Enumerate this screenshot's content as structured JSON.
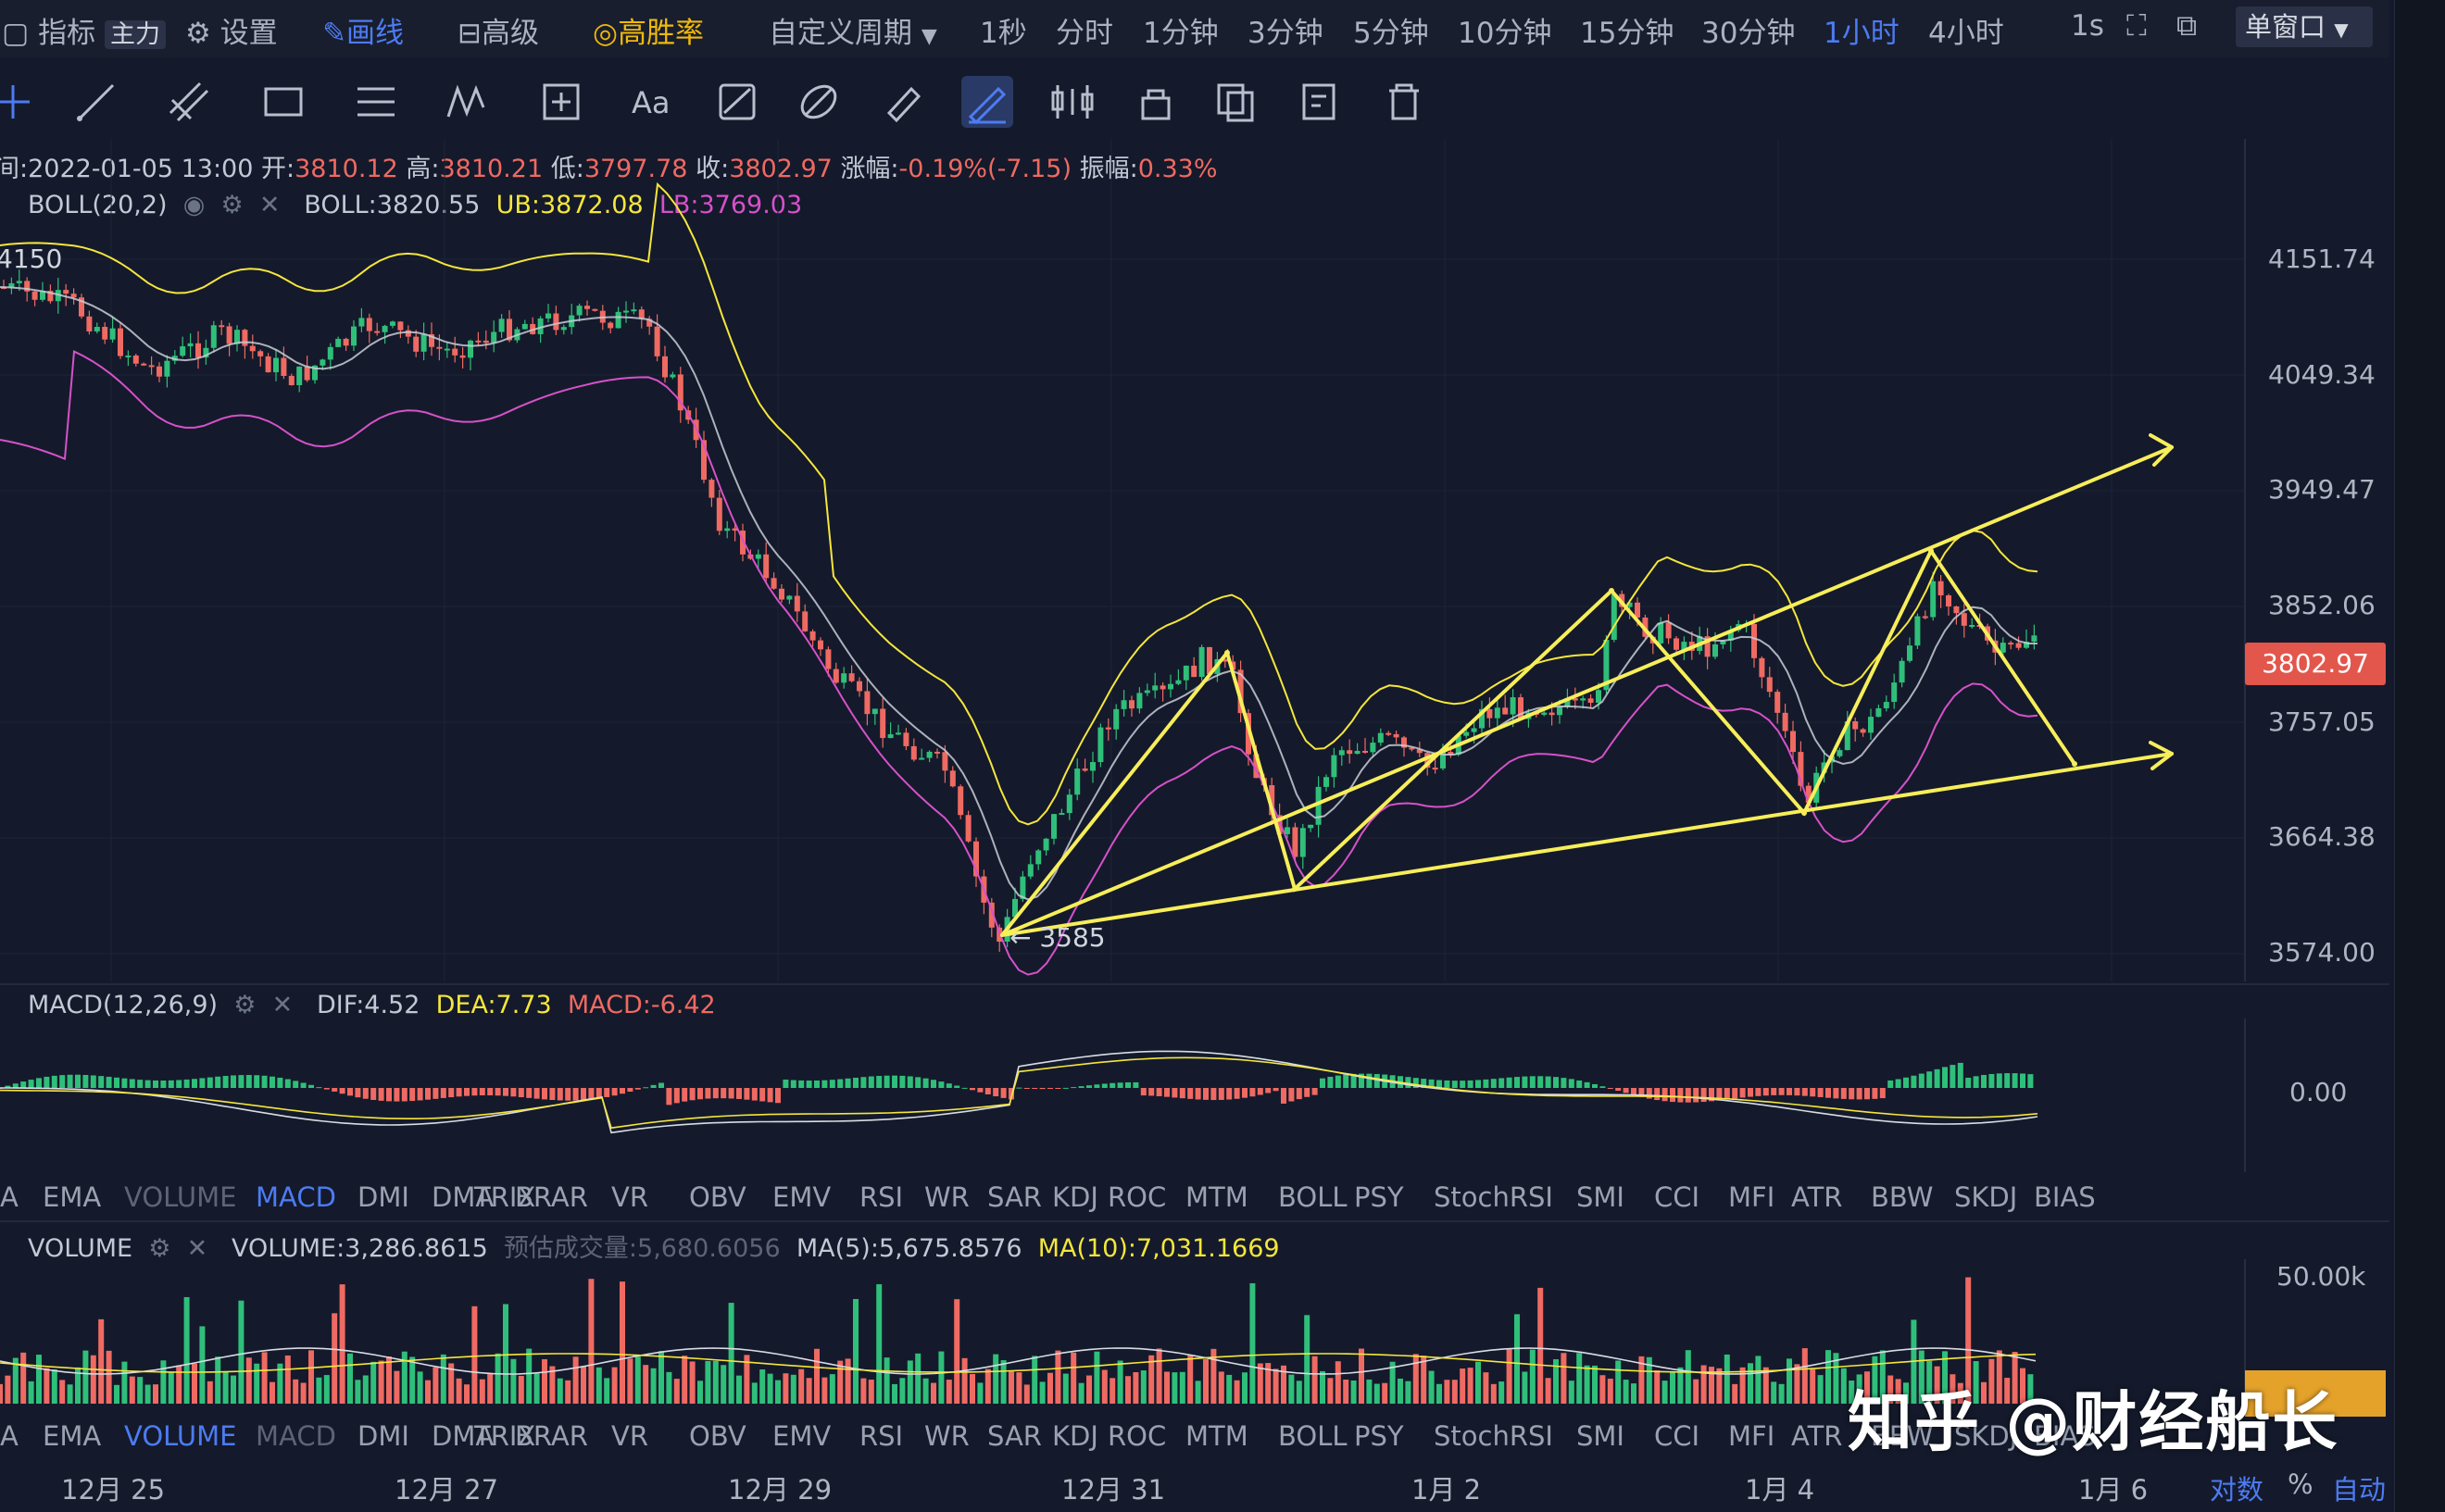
{
  "topbar": {
    "indicator": "指标",
    "main_badge": "主力",
    "settings": "设置",
    "draw": "画线",
    "advanced": "高级",
    "high_win": "高胜率",
    "custom_period": "自定义周期",
    "periods": [
      "1秒",
      "分时",
      "1分钟",
      "3分钟",
      "5分钟",
      "10分钟",
      "15分钟",
      "30分钟",
      "1小时",
      "4小时"
    ],
    "active_period": "1小时",
    "refresh": "1s",
    "window_mode": "单窗口"
  },
  "candle_info": {
    "time": "间:2022-01-05 13:00",
    "open_label": "开:",
    "open": "3810.12",
    "high_label": "高:",
    "high": "3810.21",
    "low_label": "低:",
    "low": "3797.78",
    "close_label": "收:",
    "close": "3802.97",
    "change_label": "涨幅:",
    "change": "-0.19%(-7.15)",
    "amp_label": "振幅:",
    "amp": "0.33%"
  },
  "boll": {
    "name": "BOLL(20,2)",
    "mid": "BOLL:3820.55",
    "ub": "UB:3872.08",
    "lb": "LB:3769.03"
  },
  "price_axis": [
    "4151.74",
    "4049.34",
    "3949.47",
    "3852.06",
    "3757.05",
    "3664.38",
    "3574.00"
  ],
  "current_price": "3802.97",
  "annotations": {
    "high_label": "4150",
    "low_label": "← 3585"
  },
  "macd": {
    "name": "MACD(12,26,9)",
    "dif": "DIF:4.52",
    "dea": "DEA:7.73",
    "macd": "MACD:-6.42",
    "axis": "0.00"
  },
  "indicator_tabs_1": [
    "A",
    "EMA",
    "VOLUME",
    "MACD",
    "DMI",
    "DMA",
    "TRIX",
    "BRAR",
    "VR",
    "OBV",
    "EMV",
    "RSI",
    "WR",
    "SAR",
    "KDJ",
    "ROC",
    "MTM",
    "BOLL",
    "PSY",
    "StochRSI",
    "SMI",
    "CCI",
    "MFI",
    "ATR",
    "BBW",
    "SKDJ",
    "BIAS"
  ],
  "indicator_tabs_2": [
    "A",
    "EMA",
    "VOLUME",
    "MACD",
    "DMI",
    "DMA",
    "TRIX",
    "BRAR",
    "VR",
    "OBV",
    "EMV",
    "RSI",
    "WR",
    "SAR",
    "KDJ",
    "ROC",
    "MTM",
    "BOLL",
    "PSY",
    "StochRSI",
    "SMI",
    "CCI",
    "MFI",
    "ATR",
    "BBW",
    "SKDJ",
    "BIAS"
  ],
  "volume": {
    "name": "VOLUME",
    "value": "VOLUME:3,286.8615",
    "est_label": "预估成交量:",
    "est": "5,680.6056",
    "ma5": "MA(5):5,675.8576",
    "ma10": "MA(10):7,031.1669",
    "axis": "50.00k"
  },
  "x_axis": [
    "12月 25",
    "12月 27",
    "12月 29",
    "12月 31",
    "1月 2",
    "1月 4",
    "1月 6"
  ],
  "corner": {
    "log": "对数",
    "pct": "%",
    "auto": "自动"
  },
  "watermark": "知乎 @财经船长",
  "colors": {
    "up": "#2fbf7a",
    "down": "#ef6a62",
    "boll_ub": "#f5e63c",
    "boll_lb": "#d651c9",
    "boll_mid": "#c8ccd6",
    "trend": "#f7ee5a",
    "accent": "#4d7bf3"
  }
}
